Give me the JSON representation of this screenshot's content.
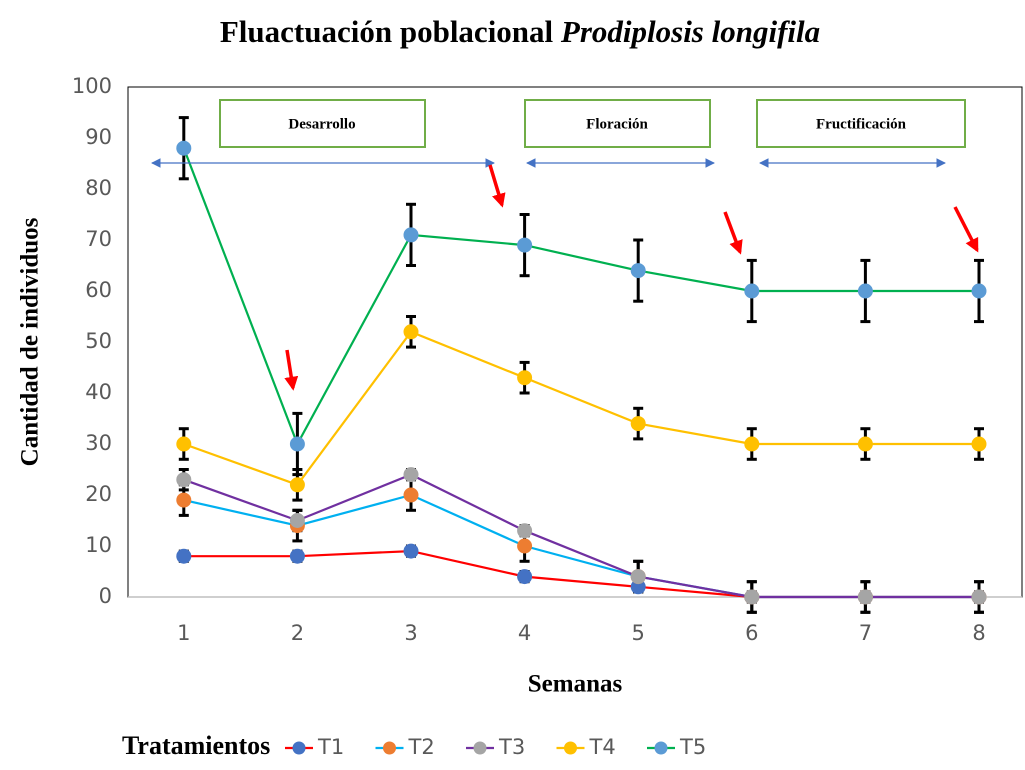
{
  "chart_data": {
    "type": "line",
    "title": "Fluactuación poblacional",
    "title_italic": "Prodiplosis longifila",
    "x_label": "Semanas",
    "y_label": "Cantidad de individuos",
    "categories": [
      "1",
      "2",
      "3",
      "4",
      "5",
      "6",
      "7",
      "8"
    ],
    "ylim": [
      0,
      100
    ],
    "yticks": [
      0,
      10,
      20,
      30,
      40,
      50,
      60,
      70,
      80,
      90,
      100
    ],
    "grid": false,
    "legend_title": "Tratamientos",
    "legend": "bottom",
    "annotations": [
      "Desarrollo",
      "Floración",
      "Fructificación"
    ],
    "series": [
      {
        "name": "T1",
        "color": "#ff0000",
        "marker_color": "#4472c4",
        "values": [
          8,
          8,
          9,
          4,
          2,
          0,
          0,
          0
        ],
        "errors": [
          1,
          1,
          1,
          1,
          1,
          1,
          1,
          1
        ]
      },
      {
        "name": "T2",
        "color": "#00b0f0",
        "marker_color": "#ed7d31",
        "values": [
          19,
          14,
          20,
          10,
          4,
          0,
          0,
          0
        ],
        "errors": [
          3,
          3,
          3,
          3,
          3,
          3,
          3,
          3
        ]
      },
      {
        "name": "T3",
        "color": "#7030a0",
        "marker_color": "#a5a5a5",
        "values": [
          23,
          15,
          24,
          13,
          4,
          0,
          0,
          0
        ],
        "errors": [
          2,
          2,
          1,
          1,
          3,
          3,
          3,
          3
        ]
      },
      {
        "name": "T4",
        "color": "#ffc000",
        "marker_color": "#ffc000",
        "values": [
          30,
          22,
          52,
          43,
          34,
          30,
          30,
          30
        ],
        "errors": [
          3,
          3,
          3,
          3,
          3,
          3,
          3,
          3
        ]
      },
      {
        "name": "T5",
        "color": "#00b050",
        "marker_color": "#5b9bd5",
        "values": [
          88,
          30,
          71,
          69,
          64,
          60,
          60,
          60
        ],
        "errors": [
          6,
          6,
          6,
          6,
          6,
          6,
          6,
          6
        ]
      }
    ]
  }
}
